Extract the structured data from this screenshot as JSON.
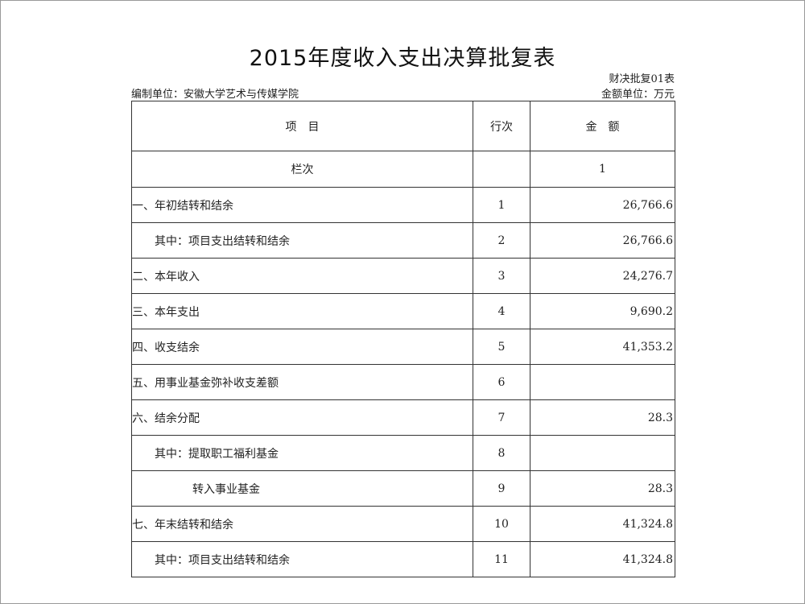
{
  "title": "2015年度收入支出决算批复表",
  "form_code": "财决批复01表",
  "unit_label": "编制单位：安徽大学艺术与传媒学院",
  "currency_label": "金额单位：万元",
  "table": {
    "headers": [
      "项　目",
      "行次",
      "金　额"
    ],
    "column_index_row": {
      "label": "栏次",
      "line": "",
      "amount": "1"
    },
    "rows": [
      {
        "item": "一、年初结转和结余",
        "line": "1",
        "amount": "26,766.6",
        "indent": 0
      },
      {
        "item": "其中：项目支出结转和结余",
        "line": "2",
        "amount": "26,766.6",
        "indent": 1
      },
      {
        "item": "二、本年收入",
        "line": "3",
        "amount": "24,276.7",
        "indent": 0
      },
      {
        "item": "三、本年支出",
        "line": "4",
        "amount": "9,690.2",
        "indent": 0
      },
      {
        "item": "四、收支结余",
        "line": "5",
        "amount": "41,353.2",
        "indent": 0
      },
      {
        "item": "五、用事业基金弥补收支差额",
        "line": "6",
        "amount": "",
        "indent": 0
      },
      {
        "item": "六、结余分配",
        "line": "7",
        "amount": "28.3",
        "indent": 0
      },
      {
        "item": "其中：提取职工福利基金",
        "line": "8",
        "amount": "",
        "indent": 1
      },
      {
        "item": "转入事业基金",
        "line": "9",
        "amount": "28.3",
        "indent": 2
      },
      {
        "item": "七、年末结转和结余",
        "line": "10",
        "amount": "41,324.8",
        "indent": 0
      },
      {
        "item": "其中：项目支出结转和结余",
        "line": "11",
        "amount": "41,324.8",
        "indent": 1
      }
    ]
  }
}
